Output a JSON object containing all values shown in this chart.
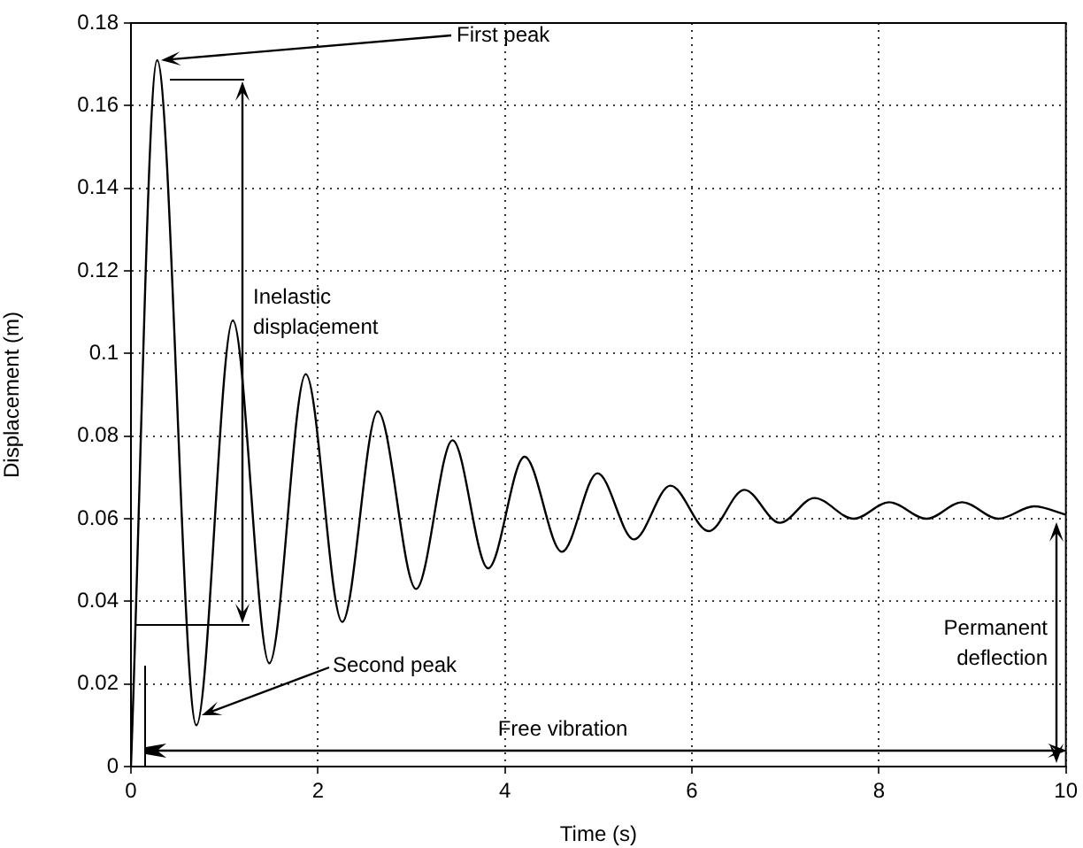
{
  "chart_data": {
    "type": "line",
    "xlabel": "Time (s)",
    "ylabel": "Displacement (m)",
    "x": [
      0,
      0.28,
      0.7,
      1.09,
      1.48,
      1.87,
      2.26,
      2.64,
      3.05,
      3.44,
      3.82,
      4.21,
      4.61,
      4.99,
      5.38,
      5.77,
      6.18,
      6.56,
      6.94,
      7.31,
      7.73,
      8.11,
      8.51,
      8.89,
      9.28,
      9.66,
      10
    ],
    "series": [
      {
        "color": "#000000",
        "values": [
          0,
          0.171,
          0.01,
          0.108,
          0.025,
          0.095,
          0.035,
          0.086,
          0.043,
          0.079,
          0.048,
          0.075,
          0.052,
          0.071,
          0.055,
          0.068,
          0.057,
          0.067,
          0.059,
          0.065,
          0.06,
          0.064,
          0.06,
          0.064,
          0.06,
          0.063,
          0.061
        ]
      }
    ],
    "xlim": [
      0,
      10
    ],
    "xticks": [
      0,
      2,
      4,
      6,
      8,
      10
    ],
    "ylim": [
      0,
      0.18
    ],
    "yticks": [
      0,
      0.02,
      0.04,
      0.06,
      0.08,
      0.1,
      0.12,
      0.14,
      0.16,
      0.18
    ],
    "grid": true,
    "marker": "none",
    "line_style": "solid",
    "legend": false,
    "annotations": [
      "First peak",
      "Inelastic displacement",
      "Second peak",
      "Free vibration",
      "Permanent deflection"
    ]
  }
}
